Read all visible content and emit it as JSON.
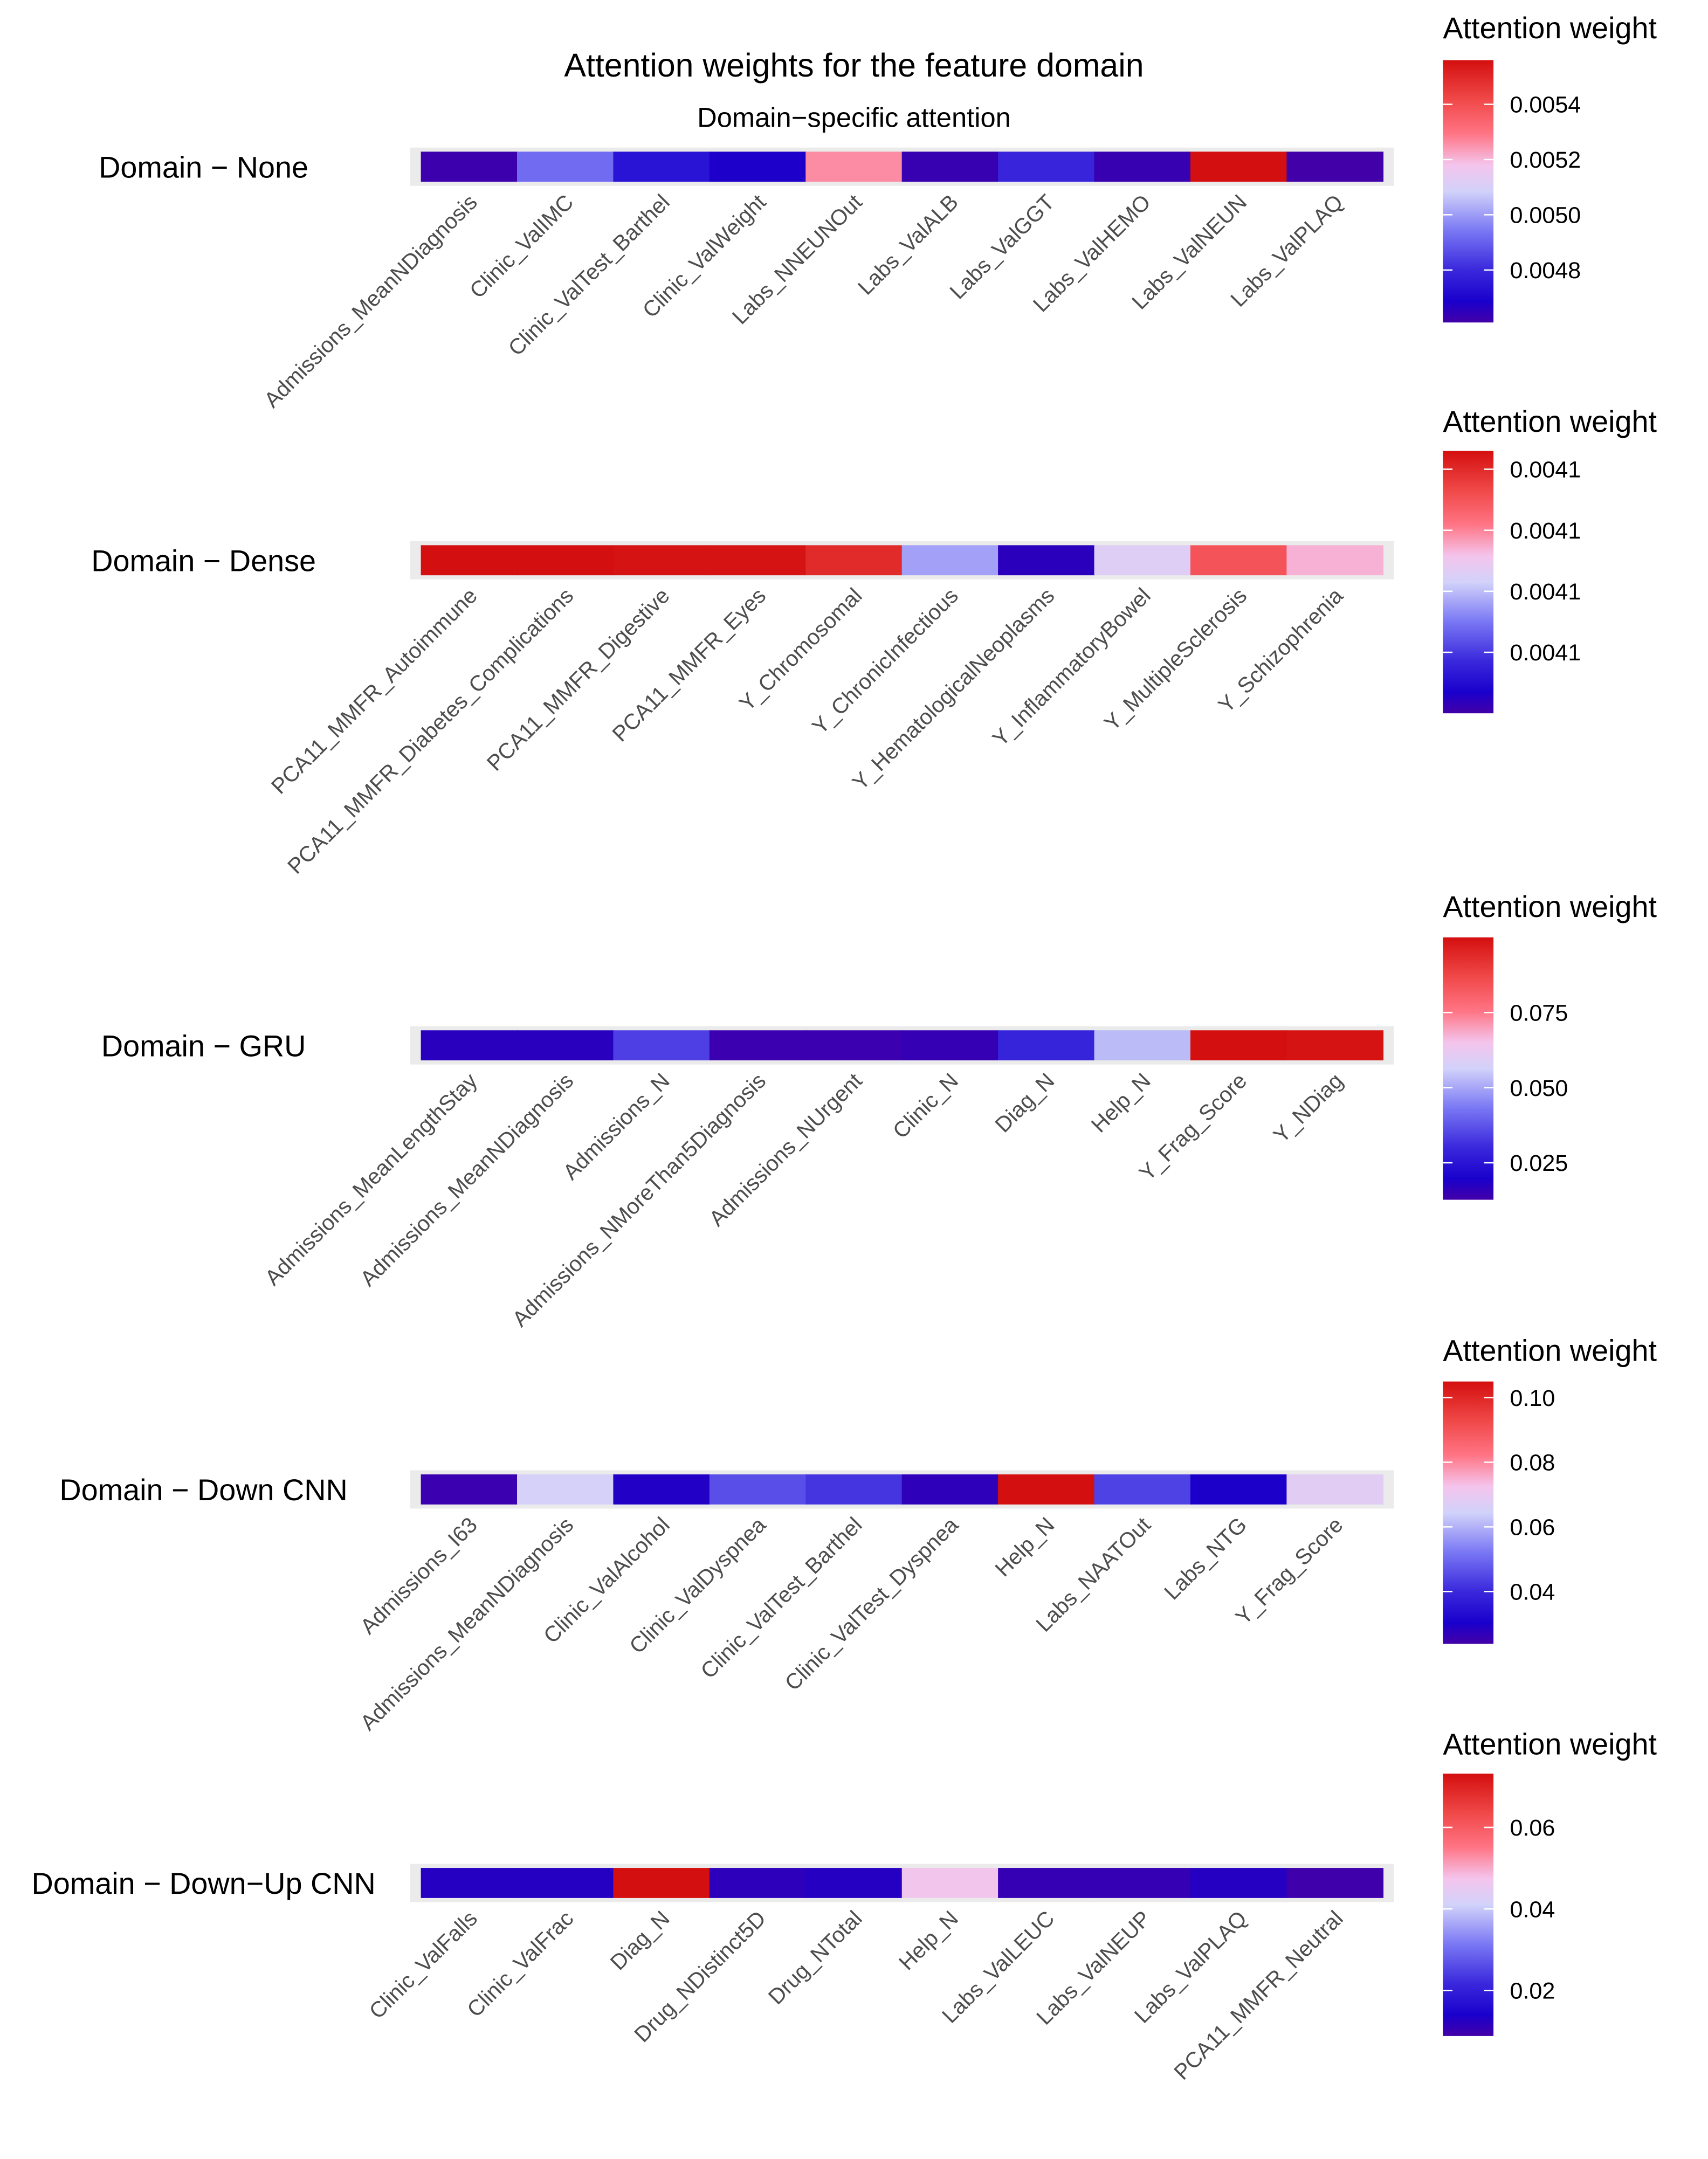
{
  "chart_data": {
    "type": "heatmap",
    "title": "Attention weights for the feature domain",
    "subtitle": "Domain−specific attention",
    "colors": [
      "#4200a8",
      "#1a00cc",
      "#3a28dc",
      "#7a78f4",
      "#d2d2fa",
      "#f4c4ec",
      "#ff7484",
      "#f04848",
      "#d40f0f"
    ],
    "panels": [
      {
        "row_label": "Domain − None",
        "legend_title": "Attention weight",
        "range": [
          0.00461,
          0.00556
        ],
        "ticks": [
          0.0054,
          0.0052,
          0.005,
          0.0048
        ],
        "tick_labels": [
          "0.0054",
          "0.0052",
          "0.0050",
          "0.0048"
        ],
        "features": [
          "Admissions_MeanNDiagnosis",
          "Clinic_ValIMC",
          "Clinic_ValTest_Barthel",
          "Clinic_ValWeight",
          "Labs_NNEUNOut",
          "Labs_ValALB",
          "Labs_ValGGT",
          "Labs_ValHEMO",
          "Labs_ValNEUN",
          "Labs_ValPLAQ"
        ],
        "values": [
          0.00462,
          0.00492,
          0.00474,
          0.00468,
          0.00526,
          0.00463,
          0.00479,
          0.00463,
          0.00556,
          0.00461
        ]
      },
      {
        "row_label": "Domain − Dense",
        "legend_title": "Attention weight",
        "range": [
          0.004085,
          0.0041065
        ],
        "ticks": [
          0.004105,
          0.0041,
          0.004095,
          0.00409
        ],
        "tick_labels": [
          "0.0041",
          "0.0041",
          "0.0041",
          "0.0041"
        ],
        "features": [
          "PCA11_MMFR_Autoimmune",
          "PCA11_MMFR_Diabetes_Complications",
          "PCA11_MMFR_Digestive",
          "PCA11_MMFR_Eyes",
          "Y_Chromosomal",
          "Y_ChronicInfectious",
          "Y_HematologicalNeoplasms",
          "Y_InflammatoryBowel",
          "Y_MultipleSclerosis",
          "Y_Schizophrenia"
        ],
        "values": [
          0.0041065,
          0.0041065,
          0.0041063,
          0.0041063,
          0.004105,
          0.004094,
          0.004086,
          0.0040965,
          0.0041025,
          0.0040985
        ]
      },
      {
        "row_label": "Domain − GRU",
        "legend_title": "Attention weight",
        "range": [
          0.0127,
          0.1
        ],
        "ticks": [
          0.075,
          0.05,
          0.025
        ],
        "tick_labels": [
          "0.075",
          "0.050",
          "0.025"
        ],
        "features": [
          "Admissions_MeanLengthStay",
          "Admissions_MeanNDiagnosis",
          "Admissions_N",
          "Admissions_NMoreThan5Diagnosis",
          "Admissions_NUrgent",
          "Clinic_N",
          "Diag_N",
          "Help_N",
          "Y_Frag_Score",
          "Y_NDiag"
        ],
        "values": [
          0.017,
          0.017,
          0.034,
          0.014,
          0.014,
          0.015,
          0.029,
          0.053,
          0.1,
          0.099
        ]
      },
      {
        "row_label": "Domain − Down CNN",
        "legend_title": "Attention weight",
        "range": [
          0.0238,
          0.105
        ],
        "ticks": [
          0.1,
          0.08,
          0.06,
          0.04
        ],
        "tick_labels": [
          "0.10",
          "0.08",
          "0.06",
          "0.04"
        ],
        "features": [
          "Admissions_I63",
          "Admissions_MeanNDiagnosis",
          "Clinic_ValAlcohol",
          "Clinic_ValDyspnea",
          "Clinic_ValTest_Barthel",
          "Clinic_ValTest_Dyspnea",
          "Help_N",
          "Labs_NAATOut",
          "Labs_NTG",
          "Y_Frag_Score"
        ],
        "values": [
          0.025,
          0.065,
          0.029,
          0.046,
          0.042,
          0.027,
          0.105,
          0.044,
          0.03,
          0.068
        ]
      },
      {
        "row_label": "Domain − Down−Up CNN",
        "legend_title": "Attention weight",
        "range": [
          0.0088,
          0.0732
        ],
        "ticks": [
          0.06,
          0.04,
          0.02
        ],
        "tick_labels": [
          "0.06",
          "0.04",
          "0.02"
        ],
        "features": [
          "Clinic_ValFalls",
          "Clinic_ValFrac",
          "Diag_N",
          "Drug_NDistinct5D",
          "Drug_NTotal",
          "Help_N",
          "Labs_ValLEUC",
          "Labs_ValNEUP",
          "Labs_ValPLAQ",
          "PCA11_MMFR_Neutral"
        ],
        "values": [
          0.0125,
          0.0125,
          0.0732,
          0.0115,
          0.0125,
          0.047,
          0.0105,
          0.0105,
          0.0125,
          0.0092
        ]
      }
    ]
  }
}
